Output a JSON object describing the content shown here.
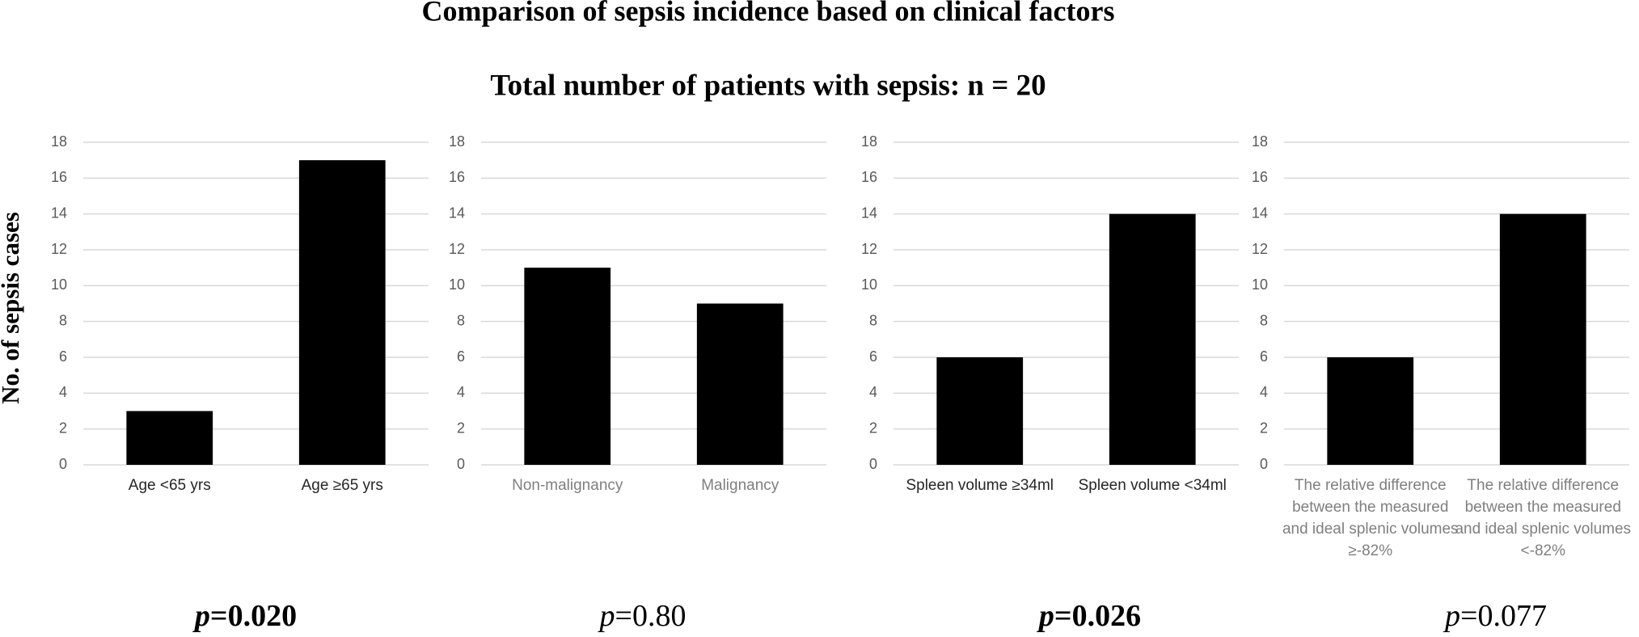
{
  "title": "Comparison of sepsis incidence based on clinical factors",
  "subtitle": "Total number of patients with sepsis: n = 20",
  "y_label": "No. of sepsis cases",
  "chart_data": [
    {
      "type": "bar",
      "categories": [
        "Age <65 yrs",
        "Age ≥65 yrs"
      ],
      "values": [
        3,
        17
      ],
      "color": "#000000",
      "ylim": [
        0,
        18
      ],
      "yticks": [
        0,
        2,
        4,
        6,
        8,
        10,
        12,
        14,
        16,
        18
      ],
      "grid": true,
      "label_color": "#262626",
      "annotation": {
        "prefix": "p",
        "text": "=0.020",
        "bold": true
      }
    },
    {
      "type": "bar",
      "categories": [
        "Non-malignancy",
        "Malignancy"
      ],
      "values": [
        11,
        9
      ],
      "color": "#000000",
      "ylim": [
        0,
        18
      ],
      "yticks": [
        0,
        2,
        4,
        6,
        8,
        10,
        12,
        14,
        16,
        18
      ],
      "grid": true,
      "label_color": "#7f7f7f",
      "annotation": {
        "prefix": "p",
        "text": "=0.80",
        "bold": false
      }
    },
    {
      "type": "bar",
      "categories": [
        "Spleen volume ≥34ml",
        "Spleen volume <34ml"
      ],
      "values": [
        6,
        14
      ],
      "color": "#000000",
      "ylim": [
        0,
        18
      ],
      "yticks": [
        0,
        2,
        4,
        6,
        8,
        10,
        12,
        14,
        16,
        18
      ],
      "grid": true,
      "label_color": "#262626",
      "annotation": {
        "prefix": "p",
        "text": "=0.026",
        "bold": true
      }
    },
    {
      "type": "bar",
      "categories": [
        "The relative difference between the measured and ideal splenic volumes ≥-82%",
        "The relative difference between the measured and ideal splenic volumes <-82%"
      ],
      "values": [
        6,
        14
      ],
      "color": "#000000",
      "ylim": [
        0,
        18
      ],
      "yticks": [
        0,
        2,
        4,
        6,
        8,
        10,
        12,
        14,
        16,
        18
      ],
      "grid": true,
      "label_color": "#7f7f7f",
      "annotation": {
        "prefix": "p",
        "text": "=0.077",
        "bold": false
      }
    }
  ]
}
